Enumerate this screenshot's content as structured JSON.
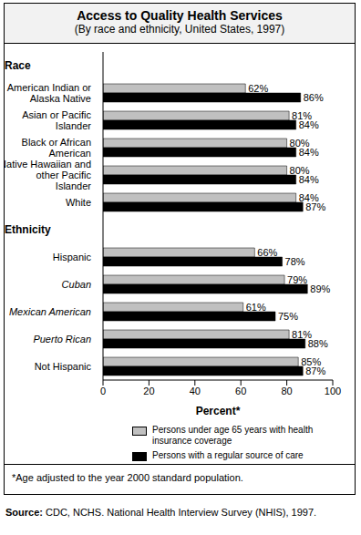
{
  "chart_data": {
    "type": "bar",
    "orientation": "horizontal",
    "title": "Access to Quality Health Services",
    "subtitle": "(By race and ethnicity, United States, 1997)",
    "x_label": "Percent*",
    "footnote": "*Age adjusted to the year 2000 standard population.",
    "source": "Source: CDC, NCHS. National Health Interview Survey (NHIS), 1997.",
    "categories": [
      "Race",
      "American Indian or Alaska Native",
      "Asian or Pacific Islander",
      "Black or African American",
      "Native Hawaiian and other Pacific Islander",
      "White",
      "Ethnicity",
      "Hispanic",
      "Cuban",
      "Mexican American",
      "Puerto Rican",
      "Not Hispanic"
    ],
    "series": [
      {
        "name": "Persons under age 65 years with health insurance coverage",
        "color": "#c0c0c0",
        "values": [
          null,
          62,
          81,
          80,
          80,
          84,
          null,
          66,
          79,
          61,
          81,
          85
        ],
        "value_labels": [
          null,
          "62%",
          "81%",
          "80%",
          "80%",
          "84%",
          null,
          "66%",
          "79%",
          "61%",
          "81%",
          "85%"
        ]
      },
      {
        "name": "Persons with a regular source of care",
        "color": "#000000",
        "values": [
          null,
          86,
          84,
          84,
          84,
          87,
          null,
          78,
          89,
          75,
          88,
          87
        ],
        "value_labels": [
          null,
          "86%",
          "84%",
          "84%",
          "84%",
          "87%",
          null,
          "78%",
          "89%",
          "75%",
          "88%",
          "87%"
        ]
      }
    ],
    "xlim": [
      0,
      100
    ],
    "xticks": [
      0,
      20,
      40,
      60,
      80,
      100
    ],
    "data_labels": true,
    "grid": false
  }
}
